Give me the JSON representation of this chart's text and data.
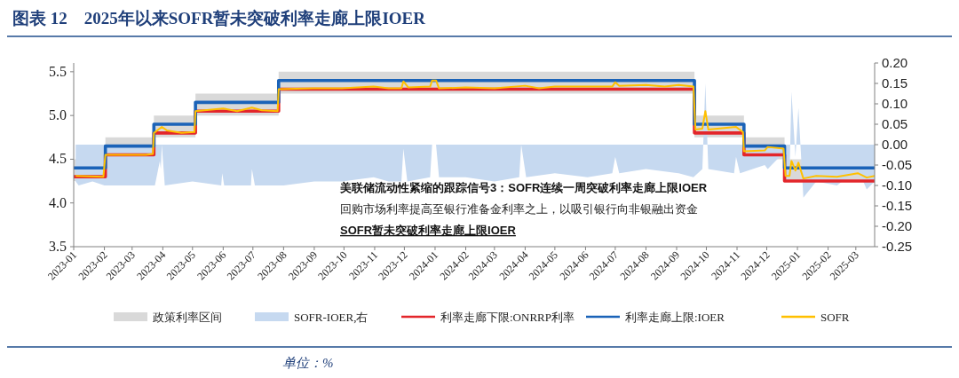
{
  "chart_data": {
    "type": "line",
    "title": "图表 12　2025年以来SOFR暂未突破利率走廊上限IOER",
    "xlim": [
      "2023-01-01",
      "2025-03-20"
    ],
    "xticks": [
      "2023-01",
      "2023-02",
      "2023-03",
      "2023-04",
      "2023-05",
      "2023-06",
      "2023-07",
      "2023-08",
      "2023-09",
      "2023-10",
      "2023-11",
      "2023-12",
      "2024-01",
      "2024-02",
      "2024-03",
      "2024-04",
      "2024-05",
      "2024-06",
      "2024-07",
      "2024-08",
      "2024-09",
      "2024-10",
      "2024-11",
      "2024-12",
      "2025-01",
      "2025-02",
      "2025-03"
    ],
    "ylim": [
      3.5,
      5.6
    ],
    "yticks": [
      3.5,
      {
        "value": 4,
        "label": "4.0"
      },
      4.5,
      {
        "value": 5,
        "label": "5.0"
      },
      5.5
    ],
    "y2lim": [
      -0.25,
      0.2
    ],
    "y2ticks": [
      {
        "value": 0.2,
        "label": "0.20"
      },
      0.15,
      {
        "value": 0.1,
        "label": "0.10"
      },
      0.05,
      {
        "value": 0,
        "label": "0.00"
      },
      -0.05,
      {
        "value": -0.1,
        "label": "-0.10"
      },
      -0.15,
      {
        "value": -0.2,
        "label": "-0.20"
      },
      -0.25
    ],
    "legend": "bottom",
    "series": [
      {
        "name": "政策利率区间",
        "type": "step",
        "color": "#d9d9d9",
        "x": [
          "2023-01-01",
          "2023-02-02",
          "2023-03-23",
          "2023-05-04",
          "2023-07-27",
          "2024-09-19",
          "2024-11-08",
          "2024-12-19",
          "2025-03-20"
        ],
        "lower": [
          4.25,
          4.5,
          4.75,
          5.0,
          5.25,
          4.75,
          4.5,
          4.25,
          4.25
        ],
        "upper": [
          4.5,
          4.75,
          5.0,
          5.25,
          5.5,
          5.0,
          4.75,
          4.5,
          4.5
        ],
        "values": [
          null,
          null,
          null,
          null,
          null,
          null,
          null,
          null,
          null
        ]
      },
      {
        "name": "SOFR-IOER,右",
        "type": "area",
        "axis": "y2",
        "color": "#c6d9f0",
        "x": [
          "2023-01-03",
          "2023-01-06",
          "2023-01-20",
          "2023-02-01",
          "2023-03-01",
          "2023-03-24",
          "2023-03-29",
          "2023-03-30",
          "2023-03-31",
          "2023-04-03",
          "2023-05-01",
          "2023-05-30",
          "2023-05-31",
          "2023-06-02",
          "2023-06-29",
          "2023-06-30",
          "2023-07-03",
          "2023-08-01",
          "2023-09-01",
          "2023-09-29",
          "2023-10-31",
          "2023-11-15",
          "2023-11-28",
          "2023-11-30",
          "2023-12-04",
          "2023-12-27",
          "2023-12-29",
          "2024-01-02",
          "2024-01-05",
          "2024-02-01",
          "2024-03-01",
          "2024-03-26",
          "2024-03-28",
          "2024-04-02",
          "2024-05-01",
          "2024-06-03",
          "2024-06-28",
          "2024-07-01",
          "2024-07-05",
          "2024-08-01",
          "2024-09-03",
          "2024-09-18",
          "2024-09-27",
          "2024-09-30",
          "2024-10-03",
          "2024-10-29",
          "2024-10-31",
          "2024-11-04",
          "2024-11-29",
          "2024-12-02",
          "2024-12-18",
          "2024-12-20",
          "2024-12-24",
          "2024-12-26",
          "2024-12-30",
          "2025-01-02",
          "2025-01-07",
          "2025-01-20",
          "2025-02-10",
          "2025-03-03",
          "2025-03-12",
          "2025-03-20"
        ],
        "values": [
          -0.09,
          -0.1,
          -0.09,
          -0.1,
          -0.1,
          -0.1,
          -0.04,
          -0.06,
          0.0,
          -0.1,
          -0.09,
          -0.1,
          -0.07,
          -0.1,
          -0.1,
          -0.06,
          -0.1,
          -0.1,
          -0.09,
          -0.09,
          -0.08,
          -0.09,
          -0.09,
          -0.01,
          -0.09,
          -0.08,
          0.0,
          0.0,
          -0.08,
          -0.08,
          -0.09,
          -0.08,
          0.0,
          -0.08,
          -0.07,
          -0.08,
          -0.07,
          -0.03,
          -0.07,
          -0.06,
          -0.07,
          -0.08,
          -0.06,
          0.15,
          -0.06,
          -0.07,
          -0.03,
          -0.07,
          -0.05,
          -0.06,
          -0.02,
          -0.09,
          -0.08,
          0.13,
          -0.03,
          0.09,
          -0.13,
          -0.09,
          -0.1,
          -0.06,
          -0.11,
          -0.09
        ]
      },
      {
        "name": "利率走廊下限:ONRRP利率",
        "type": "step",
        "color": "#e3262b",
        "x": [
          "2023-01-01",
          "2023-02-02",
          "2023-03-23",
          "2023-05-04",
          "2023-07-27",
          "2024-09-19",
          "2024-11-08",
          "2024-12-19",
          "2025-03-20"
        ],
        "values": [
          4.3,
          4.55,
          4.8,
          5.05,
          5.3,
          4.8,
          4.55,
          4.25,
          4.25
        ]
      },
      {
        "name": "利率走廊上限:IOER",
        "type": "step",
        "color": "#1b63b8",
        "x": [
          "2023-01-01",
          "2023-02-02",
          "2023-03-23",
          "2023-05-04",
          "2023-07-27",
          "2024-09-19",
          "2024-11-08",
          "2024-12-19",
          "2025-03-20"
        ],
        "values": [
          4.4,
          4.65,
          4.9,
          5.15,
          5.4,
          4.9,
          4.65,
          4.4,
          4.4
        ]
      },
      {
        "name": "SOFR",
        "color": "#ffc000",
        "x": [
          "2023-01-03",
          "2023-01-31",
          "2023-02-02",
          "2023-03-15",
          "2023-03-22",
          "2023-03-23",
          "2023-03-31",
          "2023-04-05",
          "2023-04-20",
          "2023-05-03",
          "2023-05-04",
          "2023-06-01",
          "2023-06-15",
          "2023-06-30",
          "2023-07-10",
          "2023-07-26",
          "2023-07-27",
          "2023-08-31",
          "2023-09-29",
          "2023-10-31",
          "2023-11-15",
          "2023-11-28",
          "2023-11-30",
          "2023-12-05",
          "2023-12-27",
          "2023-12-29",
          "2024-01-02",
          "2024-01-05",
          "2024-02-01",
          "2024-03-01",
          "2024-04-01",
          "2024-04-15",
          "2024-05-01",
          "2024-06-03",
          "2024-06-28",
          "2024-07-01",
          "2024-07-05",
          "2024-08-01",
          "2024-08-20",
          "2024-09-03",
          "2024-09-18",
          "2024-09-20",
          "2024-09-27",
          "2024-09-30",
          "2024-10-03",
          "2024-10-31",
          "2024-11-07",
          "2024-11-08",
          "2024-11-29",
          "2024-12-02",
          "2024-12-18",
          "2024-12-20",
          "2024-12-24",
          "2024-12-26",
          "2024-12-30",
          "2025-01-02",
          "2025-01-07",
          "2025-01-20",
          "2025-02-10",
          "2025-03-03",
          "2025-03-12",
          "2025-03-20"
        ],
        "values": [
          4.31,
          4.3,
          4.55,
          4.55,
          4.56,
          4.8,
          4.87,
          4.83,
          4.8,
          4.81,
          5.05,
          5.08,
          5.05,
          5.09,
          5.06,
          5.05,
          5.3,
          5.31,
          5.31,
          5.33,
          5.31,
          5.31,
          5.39,
          5.32,
          5.33,
          5.4,
          5.4,
          5.31,
          5.32,
          5.31,
          5.34,
          5.31,
          5.33,
          5.33,
          5.33,
          5.38,
          5.34,
          5.35,
          5.33,
          5.35,
          5.33,
          4.84,
          4.85,
          5.05,
          4.84,
          4.87,
          4.81,
          4.59,
          4.6,
          4.64,
          4.62,
          4.31,
          4.31,
          4.48,
          4.37,
          4.46,
          4.28,
          4.31,
          4.3,
          4.34,
          4.29,
          4.31
        ]
      }
    ],
    "annotations": [
      "美联储流动性紧缩的跟踪信号3：SOFR连续一周突破利率走廊上限IOER",
      "回购市场利率提高至银行准备金利率之上，以吸引银行向非银融出资金",
      "SOFR暂未突破利率走廊上限IOER",
      "单位：%"
    ]
  }
}
